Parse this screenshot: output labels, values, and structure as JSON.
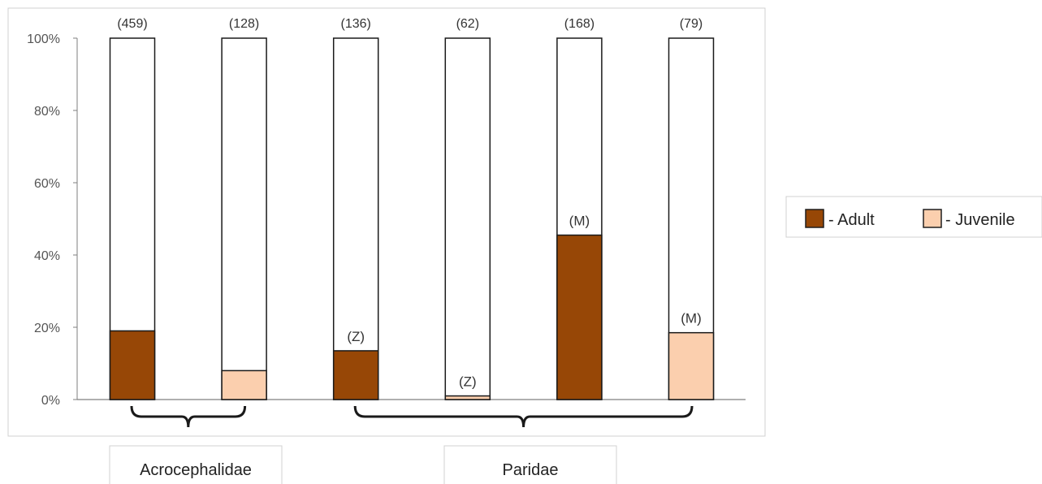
{
  "chart_data": {
    "type": "bar",
    "stacked": true,
    "ylim": [
      0,
      100
    ],
    "y_ticks": [
      "0%",
      "20%",
      "40%",
      "60%",
      "80%",
      "100%"
    ],
    "grid": false,
    "legend_position": "right",
    "bars": [
      {
        "count": "(459)",
        "age": "Adult",
        "value": 19,
        "annotation": ""
      },
      {
        "count": "(128)",
        "age": "Juvenile",
        "value": 8,
        "annotation": ""
      },
      {
        "count": "(136)",
        "age": "Adult",
        "value": 13.5,
        "annotation": "(Z)"
      },
      {
        "count": "(62)",
        "age": "Juvenile",
        "value": 1,
        "annotation": "(Z)"
      },
      {
        "count": "(168)",
        "age": "Adult",
        "value": 45.5,
        "annotation": "(M)"
      },
      {
        "count": "(79)",
        "age": "Juvenile",
        "value": 18.5,
        "annotation": "(M)"
      }
    ],
    "legend": [
      {
        "label": "- Adult",
        "color": "#974706"
      },
      {
        "label": "- Juvenile",
        "color": "#fbcfae"
      }
    ],
    "groups": [
      {
        "label": "Acrocephalidae",
        "bars": [
          0,
          1
        ]
      },
      {
        "label": "Paridae",
        "bars": [
          2,
          5
        ]
      }
    ]
  }
}
